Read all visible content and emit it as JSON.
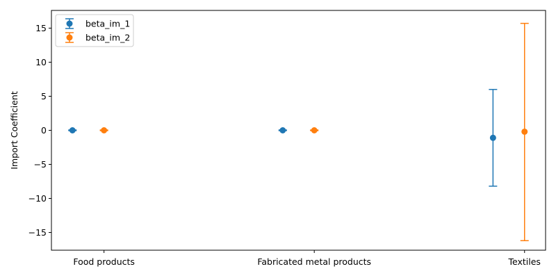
{
  "chart_data": {
    "type": "errorbar",
    "title": "",
    "xlabel": "",
    "ylabel": "Import Coefficient",
    "categories": [
      "Food products",
      "Fabricated metal products",
      "Textiles"
    ],
    "ylim": [
      -17.6,
      17.6
    ],
    "yticks": [
      -15,
      -10,
      -5,
      0,
      5,
      10,
      15
    ],
    "ytick_labels": [
      "−15",
      "−10",
      "−5",
      "0",
      "5",
      "10",
      "15"
    ],
    "grid": false,
    "legend_position": "upper-left",
    "series": [
      {
        "name": "beta_im_1",
        "color": "#1f77b4",
        "offset": -0.15,
        "values": [
          0.0,
          0.0,
          -1.1
        ],
        "lower": [
          -0.05,
          -0.05,
          -8.2
        ],
        "upper": [
          0.05,
          0.05,
          6.0
        ]
      },
      {
        "name": "beta_im_2",
        "color": "#ff7f0e",
        "offset": 0.0,
        "values": [
          0.0,
          0.0,
          -0.2
        ],
        "lower": [
          -0.05,
          -0.05,
          -16.2
        ],
        "upper": [
          0.05,
          0.05,
          15.7
        ]
      }
    ]
  }
}
